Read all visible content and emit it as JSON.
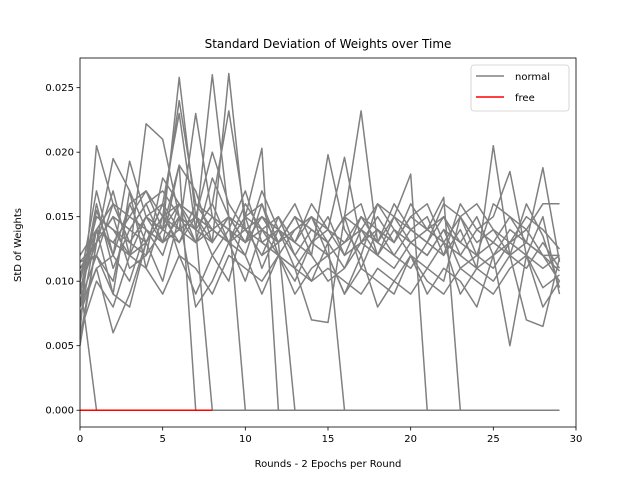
{
  "chart_data": {
    "type": "line",
    "title": "Standard Deviation of Weights over Time",
    "xlabel": "Rounds - 2 Epochs per Round",
    "ylabel": "StD of Weights",
    "xlim": [
      0,
      30
    ],
    "ylim": [
      -0.0013,
      0.0273
    ],
    "xticks": [
      0,
      5,
      10,
      15,
      20,
      25,
      30
    ],
    "yticks": [
      0.0,
      0.005,
      0.01,
      0.015,
      0.02,
      0.025
    ],
    "ytick_labels": [
      "0.000",
      "0.005",
      "0.010",
      "0.015",
      "0.020",
      "0.025"
    ],
    "grid": false,
    "legend_position": "top-right",
    "legend": [
      {
        "label": "normal",
        "color": "#808080"
      },
      {
        "label": "free",
        "color": "#ff0000"
      }
    ],
    "x": [
      0,
      1,
      2,
      3,
      4,
      5,
      6,
      7,
      8,
      9,
      10,
      11,
      12,
      13,
      14,
      15,
      16,
      17,
      18,
      19,
      20,
      21,
      22,
      23,
      24,
      25,
      26,
      27,
      28,
      29
    ],
    "series_groups": [
      {
        "name": "normal",
        "color": "#808080",
        "lines": [
          [
            0.006,
            0.0205,
            0.016,
            0.013,
            0.012,
            0.014,
            0.0258,
            0.015,
            0.012,
            0.01,
            0.015,
            0.011,
            0.014,
            0.013,
            0.012,
            0.01,
            0.011,
            0.013,
            0.012,
            0.014,
            0.012,
            0.011,
            0.01,
            0.015,
            0.012,
            0.011,
            0.013,
            0.012,
            0.011,
            0.012
          ],
          [
            0.005,
            0.013,
            0.0195,
            0.017,
            0.014,
            0.012,
            0.016,
            0.014,
            0.026,
            0.015,
            0.013,
            0.015,
            0.014,
            0.012,
            0.01,
            0.013,
            0.011,
            0.014,
            0.012,
            0.011,
            0.013,
            0.012,
            0.014,
            0.011,
            0.012,
            0.013,
            0.012,
            0.011,
            0.013,
            0.011
          ],
          [
            0.008,
            0.011,
            0.012,
            0.0193,
            0.015,
            0.013,
            0.014,
            0.015,
            0.013,
            0.0261,
            0.014,
            0.013,
            0.012,
            0.011,
            0.013,
            0.015,
            0.012,
            0.013,
            0.014,
            0.012,
            0.011,
            0.013,
            0.012,
            0.014,
            0.011,
            0.012,
            0.013,
            0.014,
            0.012,
            0.01
          ],
          [
            0.01,
            0.015,
            0.014,
            0.012,
            0.0222,
            0.021,
            0.015,
            0.013,
            0.014,
            0.015,
            0.013,
            0.014,
            0.015,
            0.012,
            0.014,
            0.013,
            0.015,
            0.0232,
            0.013,
            0.012,
            0.014,
            0.013,
            0.015,
            0.012,
            0.011,
            0.0205,
            0.012,
            0.013,
            0.0188,
            0.0115
          ],
          [
            0.011,
            0.012,
            0.01,
            0.016,
            0.017,
            0.015,
            0.024,
            0.016,
            0.014,
            0.013,
            0.016,
            0.014,
            0.013,
            0.015,
            0.012,
            0.0198,
            0.014,
            0.012,
            0.016,
            0.014,
            0.013,
            0.012,
            0.014,
            0.013,
            0.015,
            0.012,
            0.014,
            0.013,
            0.012,
            0.0108
          ],
          [
            0.012,
            0.014,
            0.013,
            0.012,
            0.013,
            0.016,
            0.014,
            0.023,
            0.015,
            0.014,
            0.017,
            0.013,
            0.014,
            0.016,
            0.013,
            0.014,
            0.0196,
            0.013,
            0.015,
            0.013,
            0.015,
            0.016,
            0.013,
            0.012,
            0.014,
            0.015,
            0.0185,
            0.012,
            0.015,
            0.009
          ],
          [
            0.009,
            0.016,
            0.011,
            0.014,
            0.016,
            0.017,
            0.015,
            0.014,
            0.016,
            0.0232,
            0.015,
            0.016,
            0.012,
            0.014,
            0.015,
            0.012,
            0.013,
            0.014,
            0.016,
            0.015,
            0.014,
            0.013,
            0.016,
            0.015,
            0.013,
            0.014,
            0.012,
            0.016,
            0.0135,
            0.0095
          ],
          [
            0.0115,
            0.013,
            0.015,
            0.011,
            0.012,
            0.018,
            0.016,
            0.015,
            0.02,
            0.016,
            0.014,
            0.012,
            0.015,
            0.013,
            0.016,
            0.014,
            0.012,
            0.015,
            0.013,
            0.016,
            0.014,
            0.015,
            0.012,
            0.016,
            0.014,
            0.013,
            0.015,
            0.014,
            0.016,
            0.016
          ],
          [
            0.01,
            0.017,
            0.012,
            0.01,
            0.014,
            0.013,
            0.019,
            0.017,
            0.013,
            0.015,
            0.013,
            0.017,
            0.014,
            0.011,
            0.007,
            0.0068,
            0.015,
            0.011,
            0.014,
            0.013,
            0.016,
            0.014,
            0.013,
            0.015,
            0.016,
            0.014,
            0.013,
            0.015,
            0.014,
            0.0125
          ],
          [
            0.007,
            0.014,
            0.009,
            0.017,
            0.011,
            0.015,
            0.013,
            0.016,
            0.015,
            0.013,
            0.012,
            0.016,
            0.013,
            0.015,
            0.014,
            0.013,
            0.015,
            0.016,
            0.012,
            0.015,
            0.013,
            0.014,
            0.015,
            0.013,
            0.012,
            0.016,
            0.015,
            0.013,
            0.012,
            0.012
          ],
          [
            0.0085,
            0.012,
            0.009,
            0.008,
            0.013,
            0.016,
            0.012,
            0.009,
            0.012,
            0.014,
            0.012,
            0.009,
            0.012,
            0.01,
            0.013,
            0.012,
            0.009,
            0.012,
            0.008,
            0.01,
            0.012,
            0.009,
            0.011,
            0.01,
            0.008,
            0.012,
            0.005,
            0.012,
            0.008,
            0.01
          ],
          [
            0.006,
            0.01,
            0.008,
            0.012,
            0.011,
            0.009,
            0.012,
            0.011,
            0.009,
            0.012,
            0.011,
            0.01,
            0.012,
            0.009,
            0.011,
            0.012,
            0.009,
            0.011,
            0.01,
            0.009,
            0.012,
            0.01,
            0.009,
            0.011,
            0.01,
            0.009,
            0.011,
            0.012,
            0.0095,
            0.0105
          ],
          [
            0.0075,
            0.011,
            0.006,
            0.009,
            0.013,
            0.01,
            0.015,
            0.008,
            0.01,
            0.013,
            0.01,
            0.014,
            0.012,
            0.011,
            0.01,
            0.011,
            0.01,
            0.009,
            0.011,
            0.01,
            0.009,
            0.011,
            0.013,
            0.009,
            0.011,
            0.01,
            0.012,
            0.007,
            0.0065,
            0.0118
          ]
        ]
      },
      {
        "name": "normal",
        "color": "#808080",
        "dropouts": [
          {
            "start": 0.0115,
            "mid": [
              0.012,
              0.016,
              0.015,
              0.017,
              0.014,
              0.019
            ],
            "dropAt": 7
          },
          {
            "start": 0.0055,
            "mid": [
              0.013,
              0.017,
              0.012,
              0.015,
              0.016,
              0.023,
              0.014
            ],
            "dropAt": 8
          },
          {
            "start": 0.008,
            "mid": [
              0.0155,
              0.012,
              0.016,
              0.013,
              0.015,
              0.016,
              0.013,
              0.018,
              0.015
            ],
            "dropAt": 10
          },
          {
            "start": 0.0105,
            "mid": [
              0.014,
              0.016,
              0.013,
              0.015,
              0.014,
              0.016,
              0.015,
              0.014,
              0.013,
              0.015,
              0.0203
            ],
            "dropAt": 12
          },
          {
            "start": 0.0095,
            "mid": [
              0.013,
              0.015,
              0.014,
              0.016,
              0.013,
              0.015,
              0.014,
              0.013,
              0.015,
              0.014,
              0.012,
              0.013
            ],
            "dropAt": 13
          },
          {
            "start": 0.009,
            "mid": [
              0.014,
              0.013,
              0.015,
              0.014,
              0.013,
              0.015,
              0.014,
              0.016,
              0.013,
              0.014,
              0.015,
              0.013,
              0.014,
              0.015,
              0.013
            ],
            "dropAt": 16
          },
          {
            "start": 0.01,
            "mid": [
              0.015,
              0.014,
              0.013,
              0.015,
              0.014,
              0.013,
              0.015,
              0.014,
              0.013,
              0.015,
              0.014,
              0.013,
              0.015,
              0.014,
              0.013,
              0.015,
              0.014,
              0.013,
              0.015,
              0.0183
            ],
            "dropAt": 21
          },
          {
            "start": 0.011,
            "mid": [
              0.013,
              0.015,
              0.014,
              0.013,
              0.015,
              0.014,
              0.013,
              0.015,
              0.014,
              0.013,
              0.015,
              0.014,
              0.013,
              0.015,
              0.014,
              0.013,
              0.015,
              0.014,
              0.013,
              0.015,
              0.014,
              0.0165
            ],
            "dropAt": 23
          },
          {
            "start": 0.01,
            "mid": [],
            "dropAt": 1
          }
        ]
      },
      {
        "name": "free",
        "color": "#ff0000",
        "lines": [
          [
            0.0,
            0.0,
            0.0,
            0.0,
            0.0,
            0.0,
            0.0,
            0.0,
            0.0
          ]
        ]
      }
    ]
  }
}
